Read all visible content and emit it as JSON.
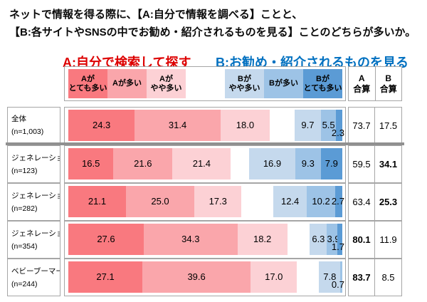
{
  "title": {
    "line1": "ネットで情報を得る際に、【A:自分で情報を調べる】ことと、",
    "line2": "【B:各サイトやSNSの中でお勧め・紹介されるものを見る】ことのどちらが多いか。"
  },
  "legend": {
    "group_a_title": "A:自分で検索して探す",
    "group_b_title": "B:お勧め・紹介されるものを見る",
    "items_a": [
      {
        "lines": [
          "Aが",
          "とても多い"
        ]
      },
      {
        "lines": [
          "Aが多い"
        ]
      },
      {
        "lines": [
          "Aが",
          "やや多い"
        ]
      }
    ],
    "items_b": [
      {
        "lines": [
          "Bが",
          "やや多い"
        ]
      },
      {
        "lines": [
          "Bが多い"
        ]
      },
      {
        "lines": [
          "Bが",
          "とても多い"
        ]
      }
    ]
  },
  "totals_header": {
    "a": [
      "A",
      "合算"
    ],
    "b": [
      "B",
      "合算"
    ]
  },
  "colors": {
    "a_scale": [
      "#F9797F",
      "#FAA6AB",
      "#FCD1D5"
    ],
    "b_scale": [
      "#C5D9ED",
      "#9DC3E6",
      "#5B9BD5"
    ],
    "header_a_text": "#DD0000",
    "header_b_text": "#0070C0",
    "cell_border": "#A6A6A6",
    "thick_separator": "#909090"
  },
  "chart_data": {
    "type": "bar",
    "variant": "diverging-stacked-horizontal",
    "unit": "%",
    "title": "ネットで情報を得る際に、【A:自分で情報を調べる】ことと、【B:各サイトやSNSの中でお勧め・紹介されるものを見る】ことのどちらが多いか。",
    "legend_position": "top",
    "grid": false,
    "axis_range_note": "red A segments left-aligned, blue B segments right-aligned, ~3.84px per percent",
    "categories": [
      "全体",
      "ジェネレーションZ",
      "ジェネレーションY",
      "ジェネレーションX",
      "ベビーブーマー"
    ],
    "category_notes": [
      "(n=1,003)",
      "(n=123)",
      "(n=282)",
      "(n=354)",
      "(n=244)"
    ],
    "series": [
      {
        "name": "Aがとても多い",
        "group": "A",
        "values": [
          24.3,
          16.5,
          21.1,
          27.6,
          27.1
        ]
      },
      {
        "name": "Aが多い",
        "group": "A",
        "values": [
          31.4,
          21.6,
          25.0,
          34.3,
          39.6
        ]
      },
      {
        "name": "Aがやや多い",
        "group": "A",
        "values": [
          18.0,
          21.4,
          17.3,
          18.2,
          17.0
        ]
      },
      {
        "name": "Bがやや多い",
        "group": "B",
        "values": [
          9.7,
          16.9,
          12.4,
          6.3,
          7.8
        ]
      },
      {
        "name": "Bが多い",
        "group": "B",
        "values": [
          5.5,
          9.3,
          10.2,
          3.9,
          0.7
        ]
      },
      {
        "name": "Bがとても多い",
        "group": "B",
        "values": [
          2.3,
          7.9,
          2.7,
          1.7,
          0
        ]
      }
    ],
    "totals": {
      "a": [
        73.7,
        59.5,
        63.4,
        80.1,
        83.7
      ],
      "b": [
        17.5,
        34.1,
        25.3,
        11.9,
        8.5
      ],
      "a_bold": [
        false,
        false,
        false,
        true,
        true
      ],
      "b_bold": [
        false,
        true,
        true,
        false,
        false
      ]
    },
    "label_placement_b": [
      [
        "in",
        "in",
        "below"
      ],
      [
        "in",
        "in",
        "in"
      ],
      [
        "in",
        "in",
        "edge"
      ],
      [
        "in",
        "in",
        "below"
      ],
      [
        "in",
        "below",
        "none"
      ]
    ]
  }
}
